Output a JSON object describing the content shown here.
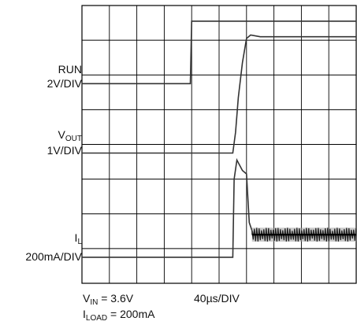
{
  "chart_data": {
    "type": "line",
    "title": "",
    "grid": true,
    "grid_divisions": {
      "x": 10,
      "y": 8
    },
    "x": {
      "label": "40µs/DIV",
      "unit": "µs",
      "per_div": 40,
      "range": [
        0,
        400
      ]
    },
    "channels": [
      {
        "name": "RUN",
        "scale_label": "2V/DIV",
        "unit": "V",
        "per_div": 2,
        "baseline_div": 5.75,
        "points": [
          [
            0,
            0
          ],
          [
            158,
            0
          ],
          [
            160,
            3.6
          ],
          [
            400,
            3.6
          ]
        ]
      },
      {
        "name": "VOUT",
        "name_main": "V",
        "name_sub": "OUT",
        "scale_label": "1V/DIV",
        "unit": "V",
        "per_div": 1,
        "baseline_div": 3.75,
        "points": [
          [
            0,
            0
          ],
          [
            220,
            0
          ],
          [
            224,
            0.6
          ],
          [
            228,
            1.6
          ],
          [
            234,
            2.6
          ],
          [
            240,
            3.3
          ],
          [
            246,
            3.4
          ],
          [
            260,
            3.35
          ],
          [
            400,
            3.35
          ]
        ]
      },
      {
        "name": "IL",
        "name_main": "I",
        "name_sub": "L",
        "scale_label": "200mA/DIV",
        "unit": "mA",
        "per_div": 200,
        "baseline_div": 0.75,
        "points": [
          [
            0,
            0
          ],
          [
            220,
            0
          ],
          [
            222,
            450
          ],
          [
            226,
            560
          ],
          [
            234,
            500
          ],
          [
            240,
            480
          ],
          [
            244,
            200
          ],
          [
            250,
            130
          ],
          [
            400,
            130
          ]
        ],
        "ripple_from": 248,
        "ripple_mA": 80
      }
    ],
    "conditions": [
      {
        "main": "V",
        "sub": "IN",
        "value": " = 3.6V"
      },
      {
        "main": "I",
        "sub": "LOAD",
        "value": " = 200mA"
      }
    ]
  }
}
